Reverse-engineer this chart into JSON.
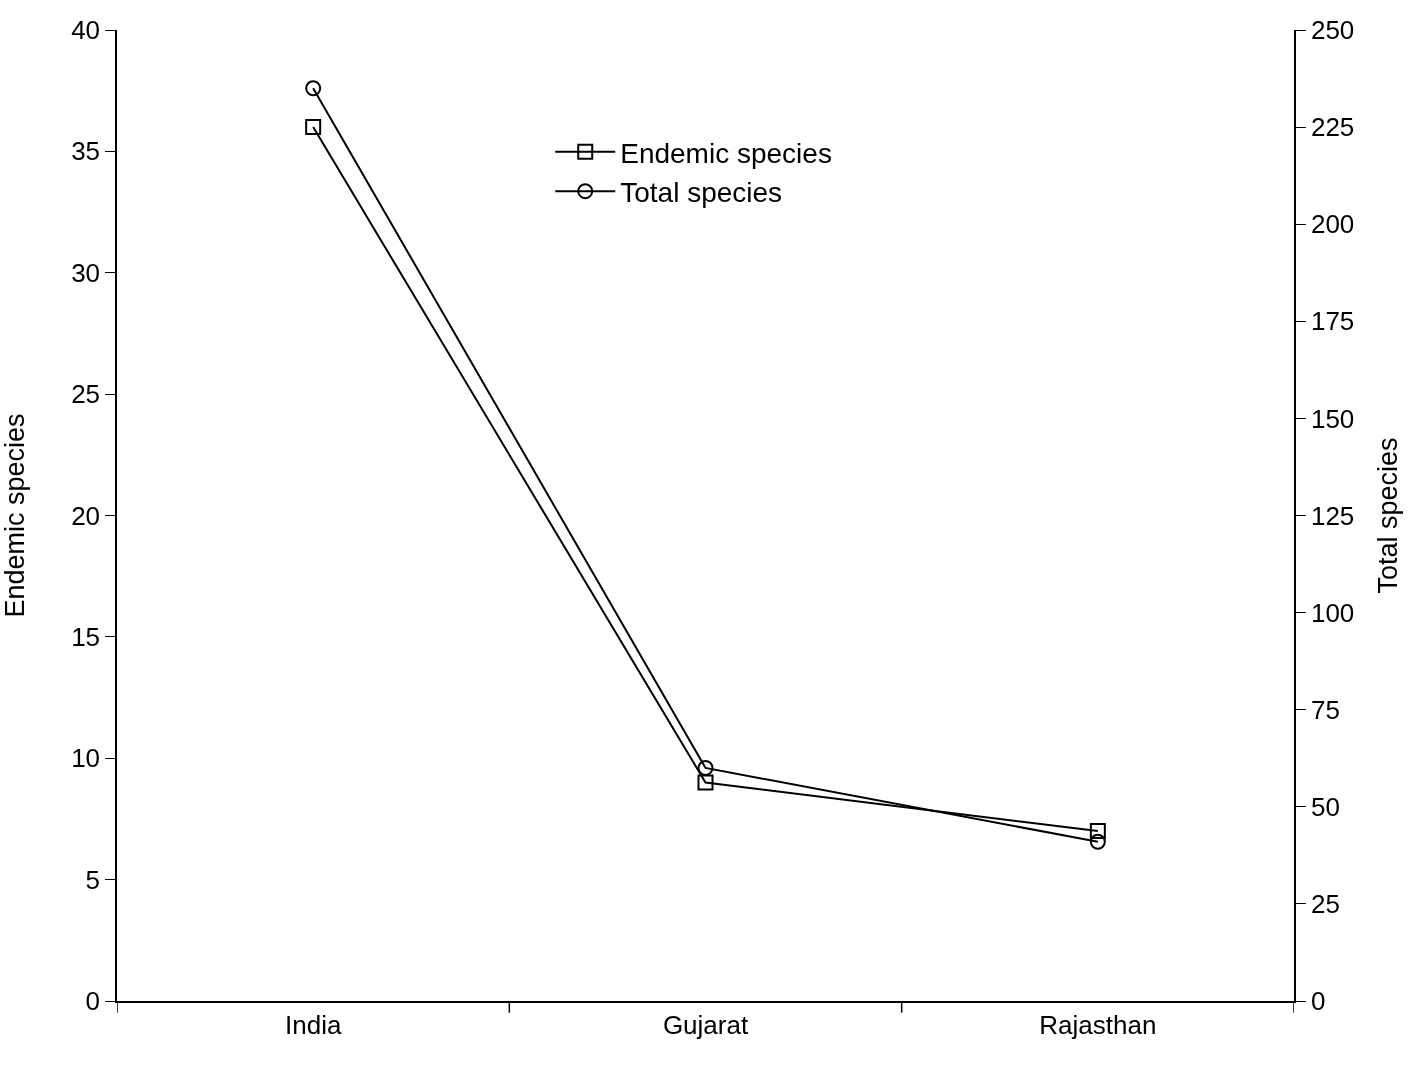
{
  "chart_data": {
    "type": "line",
    "categories": [
      "India",
      "Gujarat",
      "Rajasthan"
    ],
    "ylabel": "Endemic species",
    "y2label": "Total species",
    "ylim": [
      0,
      40
    ],
    "yticks": [
      0,
      5,
      10,
      15,
      20,
      25,
      30,
      35,
      40
    ],
    "y2lim": [
      0,
      250
    ],
    "y2ticks": [
      0,
      25,
      50,
      75,
      100,
      125,
      150,
      175,
      200,
      225,
      250
    ],
    "series": [
      {
        "name": "Endemic species",
        "color": "#000000",
        "values": [
          36,
          9,
          7
        ],
        "marker": "square"
      },
      {
        "name": "Total species",
        "color": "#000000",
        "values": [
          235,
          60,
          41
        ],
        "marker": "circle",
        "axis": "y2"
      }
    ],
    "legend": "top",
    "grid": false,
    "line_style": "solid"
  }
}
